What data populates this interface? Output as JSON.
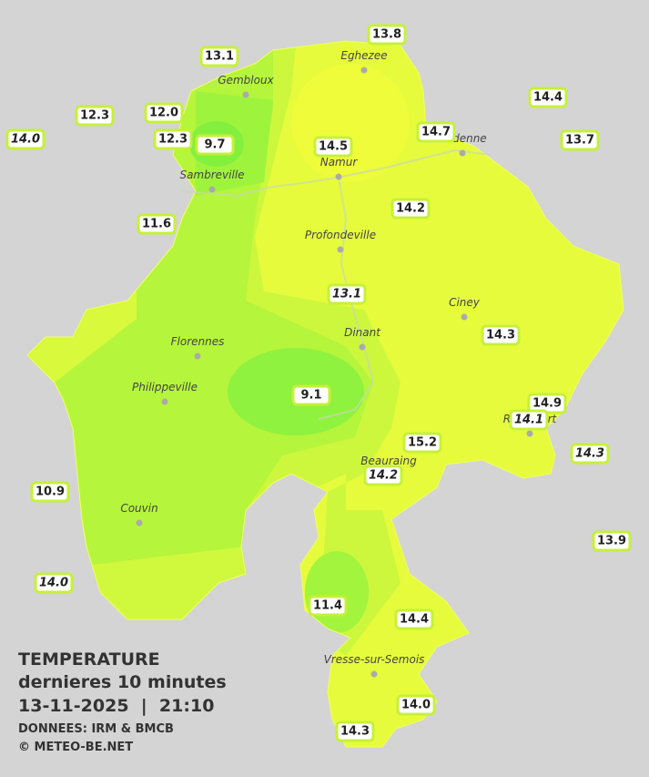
{
  "map": {
    "cities": [
      "Eghezee",
      "Gembloux",
      "Andenne",
      "Namur",
      "Sambreville",
      "Profondeville",
      "Ciney",
      "Dinant",
      "Florennes",
      "Philippeville",
      "Rochefort",
      "Beauraing",
      "Couvin",
      "Vresse-sur-Semois"
    ],
    "stations": [
      {
        "label": "13.8"
      },
      {
        "label": "13.1"
      },
      {
        "label": "14.4"
      },
      {
        "label": "12.3"
      },
      {
        "label": "12.0"
      },
      {
        "label": "14.0",
        "italic": true
      },
      {
        "label": "12.3"
      },
      {
        "label": "9.7"
      },
      {
        "label": "14.7"
      },
      {
        "label": "13.7"
      },
      {
        "label": "14.5"
      },
      {
        "label": "14.2"
      },
      {
        "label": "11.6"
      },
      {
        "label": "13.1",
        "italic": true
      },
      {
        "label": "14.3"
      },
      {
        "label": "9.1"
      },
      {
        "label": "14.9"
      },
      {
        "label": "14.1",
        "italic": true
      },
      {
        "label": "15.2"
      },
      {
        "label": "14.3",
        "italic": true
      },
      {
        "label": "14.2",
        "italic": true
      },
      {
        "label": "10.9"
      },
      {
        "label": "13.9"
      },
      {
        "label": "14.0",
        "italic": true
      },
      {
        "label": "11.4"
      },
      {
        "label": "14.4"
      },
      {
        "label": "14.0"
      },
      {
        "label": "14.3"
      }
    ],
    "legend": {
      "title": "TEMPERATURE",
      "subtitle": "dernieres 10 minutes",
      "datetime": "13-11-2025  |  21:10",
      "source": "DONNEES: IRM & BMCB",
      "credit": "© METEO-BE.NET"
    }
  }
}
